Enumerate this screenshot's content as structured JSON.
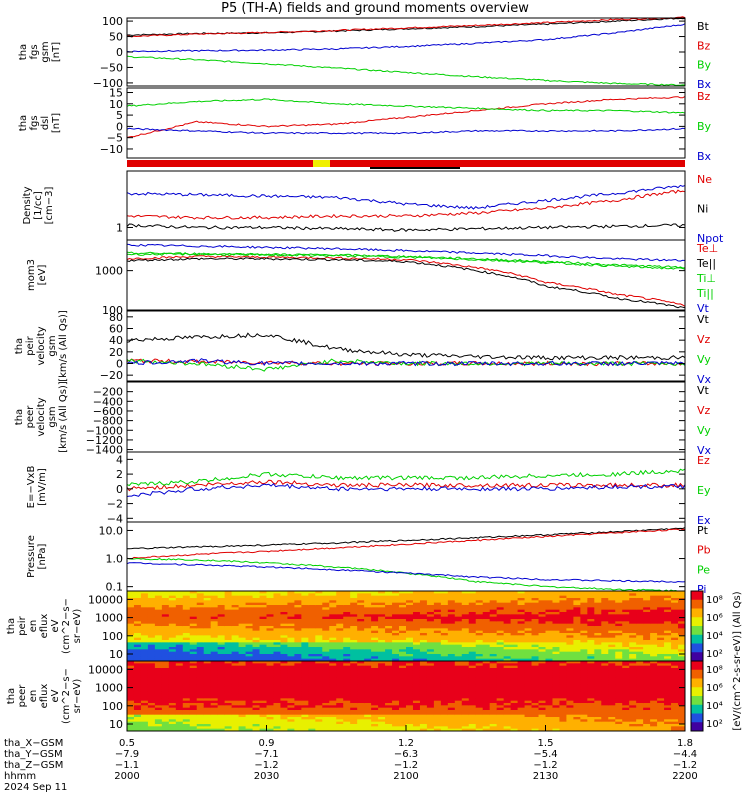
{
  "title": "P5 (TH-A) fields and ground moments overview",
  "colors": {
    "black": "#000000",
    "red": "#e00000",
    "green": "#00d000",
    "blue": "#0000d0"
  },
  "chart_data": [
    {
      "type": "line",
      "panel": "fgs_gsm",
      "ylabel": [
        "tha",
        "fgs",
        "gsm",
        "[nT]"
      ],
      "ylim": [
        -110,
        110
      ],
      "yticks": [
        "100",
        "50",
        "0",
        "−50",
        "−100"
      ],
      "ytick_values": [
        100,
        50,
        0,
        -50,
        -100
      ],
      "series": [
        {
          "name": "Bt",
          "color": "black",
          "values": [
            55,
            60,
            62,
            68,
            75,
            82,
            90,
            100,
            110
          ]
        },
        {
          "name": "Bz",
          "color": "red",
          "values": [
            50,
            58,
            63,
            70,
            78,
            86,
            95,
            105,
            112
          ]
        },
        {
          "name": "By",
          "color": "green",
          "values": [
            -15,
            -25,
            -38,
            -52,
            -66,
            -80,
            -92,
            -102,
            -107
          ]
        },
        {
          "name": "Bx",
          "color": "blue",
          "values": [
            2,
            4,
            6,
            10,
            18,
            28,
            40,
            62,
            90
          ]
        }
      ]
    },
    {
      "type": "line",
      "panel": "fgs_dsl",
      "ylabel": [
        "tha",
        "fgs",
        "dsl",
        "[nT]"
      ],
      "ylim": [
        -14,
        17
      ],
      "yticks": [
        "15",
        "10",
        "5",
        "0",
        "−5",
        "−10"
      ],
      "ytick_values": [
        15,
        10,
        5,
        0,
        -5,
        -10
      ],
      "series": [
        {
          "name": "Bz",
          "color": "red",
          "values": [
            -5,
            2,
            0,
            1,
            4,
            7,
            10,
            12,
            13
          ]
        },
        {
          "name": "By",
          "color": "green",
          "values": [
            9,
            11,
            12,
            10,
            9,
            8,
            7,
            7,
            6
          ]
        },
        {
          "name": "Bx",
          "color": "blue",
          "values": [
            -1,
            -2,
            -3,
            -3,
            -3,
            -2,
            -2,
            -2,
            -1
          ]
        }
      ]
    },
    {
      "type": "line",
      "panel": "density",
      "ylabel": [
        "Density",
        "[1/cc]",
        "[cm−3]"
      ],
      "ylog": true,
      "ylim": [
        0.6,
        10
      ],
      "yticks": [
        "1"
      ],
      "ytick_values": [
        1
      ],
      "series": [
        {
          "name": "Ne",
          "color": "red",
          "values": [
            1.6,
            1.5,
            1.5,
            1.6,
            1.6,
            1.8,
            2.2,
            3.0,
            4.5
          ]
        },
        {
          "name": "Ni",
          "color": "black",
          "values": [
            1.1,
            1.0,
            1.0,
            0.95,
            0.9,
            0.95,
            1.0,
            1.05,
            1.1
          ]
        },
        {
          "name": "Npot",
          "color": "blue",
          "values": [
            4.0,
            3.8,
            3.6,
            3.4,
            2.6,
            2.2,
            3.0,
            4.0,
            5.5
          ]
        }
      ]
    },
    {
      "type": "line",
      "panel": "temperature",
      "ylabel": [
        "mom3",
        "[eV]"
      ],
      "ylog": true,
      "ylim": [
        100,
        6000
      ],
      "yticks": [
        "1000",
        "100"
      ],
      "ytick_values": [
        1000,
        100
      ],
      "series": [
        {
          "name": "Te⊥",
          "color": "red",
          "values": [
            2000,
            2300,
            2200,
            2100,
            1900,
            1200,
            500,
            250,
            130
          ]
        },
        {
          "name": "Te||",
          "color": "black",
          "values": [
            1800,
            2000,
            2000,
            1900,
            1700,
            1000,
            400,
            200,
            110
          ]
        },
        {
          "name": "Ti⊥",
          "color": "green",
          "values": [
            2800,
            2700,
            2600,
            2500,
            2300,
            2000,
            1700,
            1400,
            1200
          ]
        },
        {
          "name": "Ti||",
          "color": "green",
          "values": [
            2600,
            2600,
            2500,
            2400,
            2200,
            1900,
            1600,
            1300,
            1100
          ]
        },
        {
          "name": "Vt",
          "color": "blue",
          "values": [
            4500,
            4200,
            3900,
            3600,
            3200,
            2800,
            2400,
            2000,
            1800
          ]
        }
      ]
    },
    {
      "type": "line",
      "panel": "peir_velocity",
      "ylabel": [
        "tha",
        "peir",
        "velocity",
        "gsm",
        "[km/s (All Qs)]"
      ],
      "ylim": [
        -30,
        90
      ],
      "yticks": [
        "80",
        "60",
        "40",
        "20",
        "0",
        "−20"
      ],
      "ytick_values": [
        80,
        60,
        40,
        20,
        0,
        -20
      ],
      "series": [
        {
          "name": "Vt",
          "color": "black",
          "values": [
            40,
            45,
            50,
            25,
            15,
            12,
            10,
            10,
            10
          ]
        },
        {
          "name": "Vz",
          "color": "red",
          "values": [
            5,
            3,
            2,
            0,
            0,
            0,
            0,
            0,
            0
          ]
        },
        {
          "name": "Vy",
          "color": "green",
          "values": [
            5,
            0,
            -10,
            5,
            0,
            0,
            0,
            0,
            0
          ]
        },
        {
          "name": "Vx",
          "color": "blue",
          "values": [
            0,
            5,
            0,
            0,
            0,
            0,
            0,
            0,
            0
          ]
        }
      ]
    },
    {
      "type": "line",
      "panel": "peer_velocity",
      "ylabel": [
        "tha",
        "peer",
        "velocity",
        "gsm",
        "[km/s (All Qs)]"
      ],
      "ylim": [
        -1450,
        0
      ],
      "yticks": [
        "−200",
        "−400",
        "−600",
        "−800",
        "−1000",
        "−1200",
        "−1400"
      ],
      "ytick_values": [
        -200,
        -400,
        -600,
        -800,
        -1000,
        -1200,
        -1400
      ],
      "series": [
        {
          "name": "Vt",
          "color": "black",
          "values": []
        },
        {
          "name": "Vz",
          "color": "red",
          "values": []
        },
        {
          "name": "Vy",
          "color": "green",
          "values": []
        },
        {
          "name": "Vx",
          "color": "blue",
          "values": []
        }
      ]
    },
    {
      "type": "line",
      "panel": "efield",
      "ylabel": [
        "E=−VxB",
        "[mV/m]"
      ],
      "ylim": [
        -4.5,
        5
      ],
      "yticks": [
        "4",
        "2",
        "0",
        "−2",
        "−4"
      ],
      "ytick_values": [
        4,
        2,
        0,
        -2,
        -4
      ],
      "series": [
        {
          "name": "Ez",
          "color": "red",
          "values": [
            0,
            0.5,
            1,
            0.5,
            0.5,
            0.5,
            0.5,
            0.5,
            0.5
          ]
        },
        {
          "name": "Ey",
          "color": "green",
          "values": [
            0.5,
            1,
            2,
            1.5,
            1.5,
            1.5,
            1.8,
            2,
            2.5
          ]
        },
        {
          "name": "Ex",
          "color": "blue",
          "values": [
            -1,
            0,
            0.5,
            0,
            0,
            0,
            0,
            0.3,
            0.3
          ]
        }
      ]
    },
    {
      "type": "line",
      "panel": "pressure",
      "ylabel": [
        "Pressure",
        "[nPa]"
      ],
      "ylog": true,
      "ylim": [
        0.07,
        20
      ],
      "yticks": [
        "10.0",
        "1.0",
        "0.1"
      ],
      "ytick_values": [
        10,
        1,
        0.1
      ],
      "series": [
        {
          "name": "Pt",
          "color": "black",
          "values": [
            2.2,
            2.6,
            3.0,
            3.6,
            4.4,
            5.5,
            7.0,
            9.0,
            12
          ]
        },
        {
          "name": "Pb",
          "color": "red",
          "values": [
            1.0,
            1.4,
            1.8,
            2.4,
            3.2,
            4.4,
            6.0,
            8.2,
            11
          ]
        },
        {
          "name": "Pe",
          "color": "green",
          "values": [
            1.0,
            0.9,
            0.7,
            0.5,
            0.3,
            0.15,
            0.1,
            0.08,
            0.07
          ]
        },
        {
          "name": "Pi",
          "color": "blue",
          "values": [
            0.7,
            0.6,
            0.5,
            0.4,
            0.3,
            0.22,
            0.18,
            0.16,
            0.15
          ]
        }
      ]
    },
    {
      "type": "heatmap",
      "panel": "peir_en_eflux",
      "ylabel": [
        "tha",
        "peir",
        "en",
        "eflux",
        "eV",
        "(cm^2−s−",
        "sr−eV)"
      ],
      "ylog": true,
      "yticks": [
        "10000",
        "1000",
        "100",
        "10"
      ],
      "ytick_values": [
        10000,
        1000,
        100,
        10
      ]
    },
    {
      "type": "heatmap",
      "panel": "peer_en_eflux",
      "ylabel": [
        "tha",
        "peer",
        "en",
        "eflux",
        "eV",
        "(cm^2−s−",
        "sr−eV)"
      ],
      "ylog": true,
      "yticks": [
        "10000",
        "1000",
        "100",
        "10"
      ],
      "ytick_values": [
        10000,
        1000,
        100,
        10
      ]
    }
  ],
  "colorbar": {
    "ticks": [
      "10⁸",
      "10⁶",
      "10⁴",
      "10²"
    ],
    "label": "[eV/(cm^2-s-sr-eV)] (All Qs)",
    "label2": "[eV/(cm^2-s-sr-eV)]"
  },
  "xaxis": {
    "rows": [
      {
        "label": "tha_X−GSM",
        "values": [
          "0.5",
          "0.9",
          "1.2",
          "1.5",
          "1.8"
        ]
      },
      {
        "label": "tha_Y−GSM",
        "values": [
          "−7.9",
          "−7.1",
          "−6.3",
          "−5.4",
          "−4.4"
        ]
      },
      {
        "label": "tha_Z−GSM",
        "values": [
          "−1.1",
          "−1.2",
          "−1.2",
          "−1.2",
          "−1.2"
        ]
      },
      {
        "label": "hhmm",
        "values": [
          "2000",
          "2030",
          "2100",
          "2130",
          "2200"
        ]
      }
    ],
    "date": "2024 Sep 11"
  }
}
